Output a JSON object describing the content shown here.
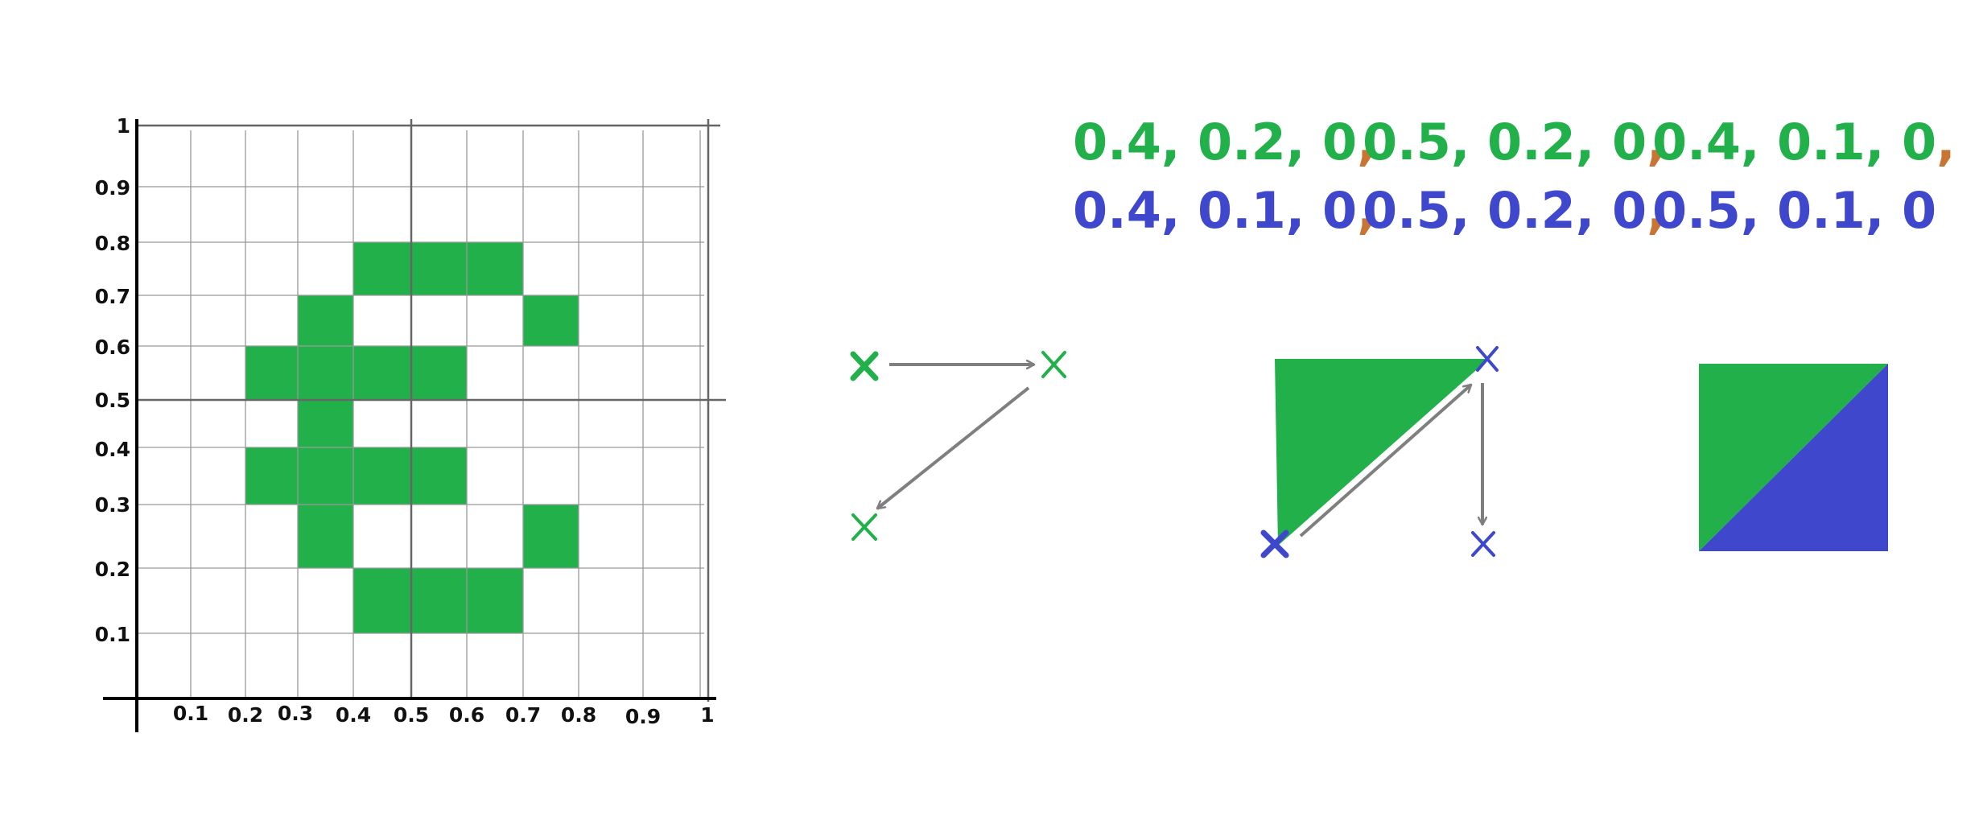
{
  "colors": {
    "green": "#22B04B",
    "blue": "#3F48CC",
    "orange": "#C87533",
    "arrow": "#7F7F7F",
    "grid": "#999999",
    "axis": "#000000"
  },
  "grid": {
    "x_ticks": [
      "0.1",
      "0.2",
      "0.3",
      "0.4",
      "0.5",
      "0.6",
      "0.7",
      "0.8",
      "0.9",
      "1"
    ],
    "y_ticks": [
      "0.1",
      "0.2",
      "0.3",
      "0.4",
      "0.5",
      "0.6",
      "0.7",
      "0.8",
      "0.9",
      "1"
    ],
    "filled_cells": [
      [
        0.4,
        0.8
      ],
      [
        0.5,
        0.8
      ],
      [
        0.6,
        0.8
      ],
      [
        0.3,
        0.7
      ],
      [
        0.7,
        0.7
      ],
      [
        0.2,
        0.6
      ],
      [
        0.3,
        0.6
      ],
      [
        0.4,
        0.6
      ],
      [
        0.5,
        0.6
      ],
      [
        0.3,
        0.5
      ],
      [
        0.2,
        0.4
      ],
      [
        0.3,
        0.4
      ],
      [
        0.4,
        0.4
      ],
      [
        0.5,
        0.4
      ],
      [
        0.3,
        0.3
      ],
      [
        0.7,
        0.3
      ],
      [
        0.4,
        0.2
      ],
      [
        0.5,
        0.2
      ],
      [
        0.6,
        0.2
      ]
    ]
  },
  "coords": {
    "row1": [
      {
        "text": "0.4, 0.2, 0",
        "sep": ","
      },
      {
        "text": "0.5, 0.2, 0",
        "sep": ","
      },
      {
        "text": "0.4, 0.1, 0",
        "sep": ","
      }
    ],
    "row2": [
      {
        "text": "0.4, 0.1, 0",
        "sep": ","
      },
      {
        "text": "0.5, 0.2, 0",
        "sep": ","
      },
      {
        "text": "0.5, 0.1, 0",
        "sep": ""
      }
    ]
  },
  "icons": {
    "vertex_marker": "x-mark-icon",
    "arrow": "arrow-icon"
  }
}
